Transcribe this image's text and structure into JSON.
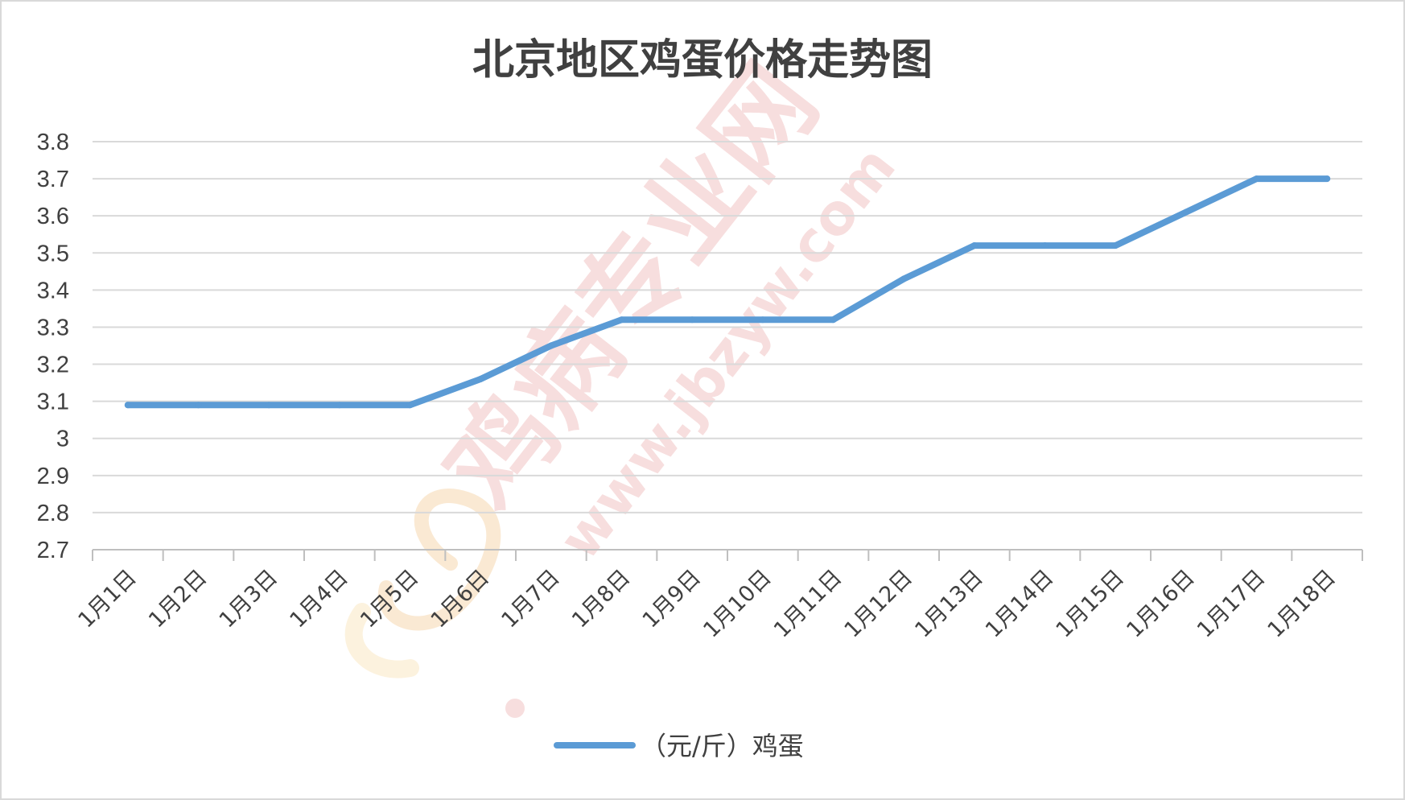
{
  "chart_data": {
    "type": "line",
    "title": "北京地区鸡蛋价格走势图",
    "xlabel": "",
    "ylabel": "",
    "categories": [
      "1月1日",
      "1月2日",
      "1月3日",
      "1月4日",
      "1月5日",
      "1月6日",
      "1月7日",
      "1月8日",
      "1月9日",
      "1月10日",
      "1月11日",
      "1月12日",
      "1月13日",
      "1月14日",
      "1月15日",
      "1月16日",
      "1月17日",
      "1月18日"
    ],
    "series": [
      {
        "name": "（元/斤）鸡蛋",
        "color": "#5b9bd5",
        "values": [
          3.09,
          3.09,
          3.09,
          3.09,
          3.09,
          3.16,
          3.25,
          3.32,
          3.32,
          3.32,
          3.32,
          3.43,
          3.52,
          3.52,
          3.52,
          3.61,
          3.7,
          3.7
        ]
      }
    ],
    "ylim": [
      2.7,
      3.8
    ],
    "yticks": [
      "2.7",
      "2.8",
      "2.9",
      "3",
      "3.1",
      "3.2",
      "3.3",
      "3.4",
      "3.5",
      "3.6",
      "3.7",
      "3.8"
    ],
    "grid": true,
    "legend_position": "bottom"
  },
  "watermark": {
    "text": "鸡病专业网",
    "url": "www.jbzyw.com",
    "color": "#e8a0a0"
  }
}
